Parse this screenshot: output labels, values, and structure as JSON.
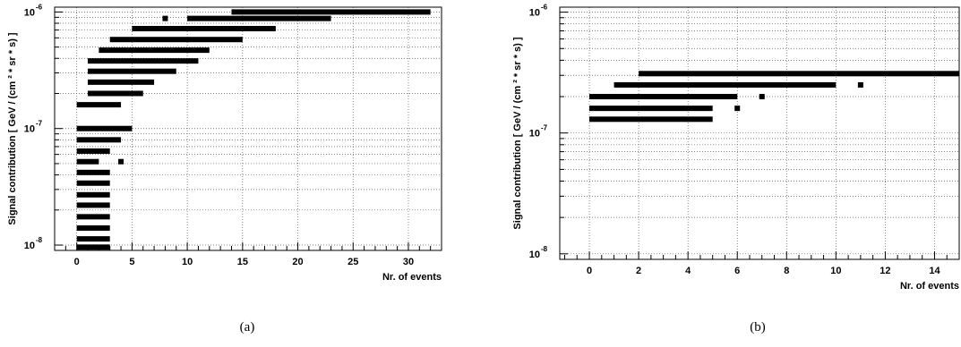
{
  "chart_data": [
    {
      "type": "bar",
      "panel_label": "(a)",
      "xlabel": "Nr. of events",
      "ylabel": "Signal contribution [ GeV / (cm ² * sr * s) ]",
      "xlim": [
        -2,
        33
      ],
      "ylim": [
        9e-09,
        1.1e-06
      ],
      "yscale": "log",
      "grid": true,
      "x_ticks": [
        "0",
        "5",
        "10",
        "15",
        "20",
        "25",
        "30"
      ],
      "y_ticks": [
        {
          "base": "10",
          "exp": "-8",
          "value": 1e-08
        },
        {
          "base": "10",
          "exp": "-7",
          "value": 1e-07
        },
        {
          "base": "10",
          "exp": "-6",
          "value": 1e-06
        }
      ],
      "intervals": [
        {
          "y": 1e-06,
          "x_start": 14,
          "x_end": 32
        },
        {
          "y": 8.8e-07,
          "x_start": 10,
          "x_end": 23
        },
        {
          "y": 7.2e-07,
          "x_start": 5,
          "x_end": 18
        },
        {
          "y": 5.8e-07,
          "x_start": 3,
          "x_end": 15
        },
        {
          "y": 4.7e-07,
          "x_start": 2,
          "x_end": 12
        },
        {
          "y": 3.8e-07,
          "x_start": 1,
          "x_end": 11
        },
        {
          "y": 3.1e-07,
          "x_start": 1,
          "x_end": 9
        },
        {
          "y": 2.5e-07,
          "x_start": 1,
          "x_end": 7
        },
        {
          "y": 2e-07,
          "x_start": 1,
          "x_end": 6
        },
        {
          "y": 1.6e-07,
          "x_start": 0,
          "x_end": 4
        },
        {
          "y": 1e-07,
          "x_start": 0,
          "x_end": 5
        },
        {
          "y": 8e-08,
          "x_start": 0,
          "x_end": 4
        },
        {
          "y": 6.4e-08,
          "x_start": 0,
          "x_end": 3
        },
        {
          "y": 5.2e-08,
          "x_start": 0,
          "x_end": 2
        },
        {
          "y": 4.2e-08,
          "x_start": 0,
          "x_end": 3
        },
        {
          "y": 3.4e-08,
          "x_start": 0,
          "x_end": 3
        },
        {
          "y": 2.7e-08,
          "x_start": 0,
          "x_end": 3
        },
        {
          "y": 2.2e-08,
          "x_start": 0,
          "x_end": 3
        },
        {
          "y": 1.75e-08,
          "x_start": 0,
          "x_end": 3
        },
        {
          "y": 1.4e-08,
          "x_start": 0,
          "x_end": 3
        },
        {
          "y": 1.13e-08,
          "x_start": 0,
          "x_end": 3
        },
        {
          "y": 9.6e-09,
          "x_start": 0,
          "x_end": 3
        }
      ],
      "points": [
        {
          "x": 8,
          "y": 8.8e-07
        },
        {
          "x": 4,
          "y": 5.2e-08
        }
      ]
    },
    {
      "type": "bar",
      "panel_label": "(b)",
      "xlabel": "Nr. of events",
      "ylabel": "Signal contribution [ GeV / (cm ² * sr * s) ]",
      "xlim": [
        -1.2,
        15
      ],
      "ylim": [
        9e-09,
        1.1e-06
      ],
      "yscale": "log",
      "grid": true,
      "x_ticks": [
        "0",
        "2",
        "4",
        "6",
        "8",
        "10",
        "12",
        "14"
      ],
      "y_ticks": [
        {
          "base": "10",
          "exp": "-8",
          "value": 1e-08
        },
        {
          "base": "10",
          "exp": "-7",
          "value": 1e-07
        },
        {
          "base": "10",
          "exp": "-6",
          "value": 1e-06
        }
      ],
      "intervals": [
        {
          "y": 3.1e-07,
          "x_start": 2,
          "x_end": 15
        },
        {
          "y": 2.5e-07,
          "x_start": 1,
          "x_end": 10
        },
        {
          "y": 2e-07,
          "x_start": 0,
          "x_end": 6
        },
        {
          "y": 1.6e-07,
          "x_start": 0,
          "x_end": 5
        },
        {
          "y": 1.3e-07,
          "x_start": 0,
          "x_end": 5
        }
      ],
      "points": [
        {
          "x": 11,
          "y": 2.5e-07
        },
        {
          "x": 7,
          "y": 2e-07
        },
        {
          "x": 6,
          "y": 1.6e-07
        }
      ]
    }
  ]
}
